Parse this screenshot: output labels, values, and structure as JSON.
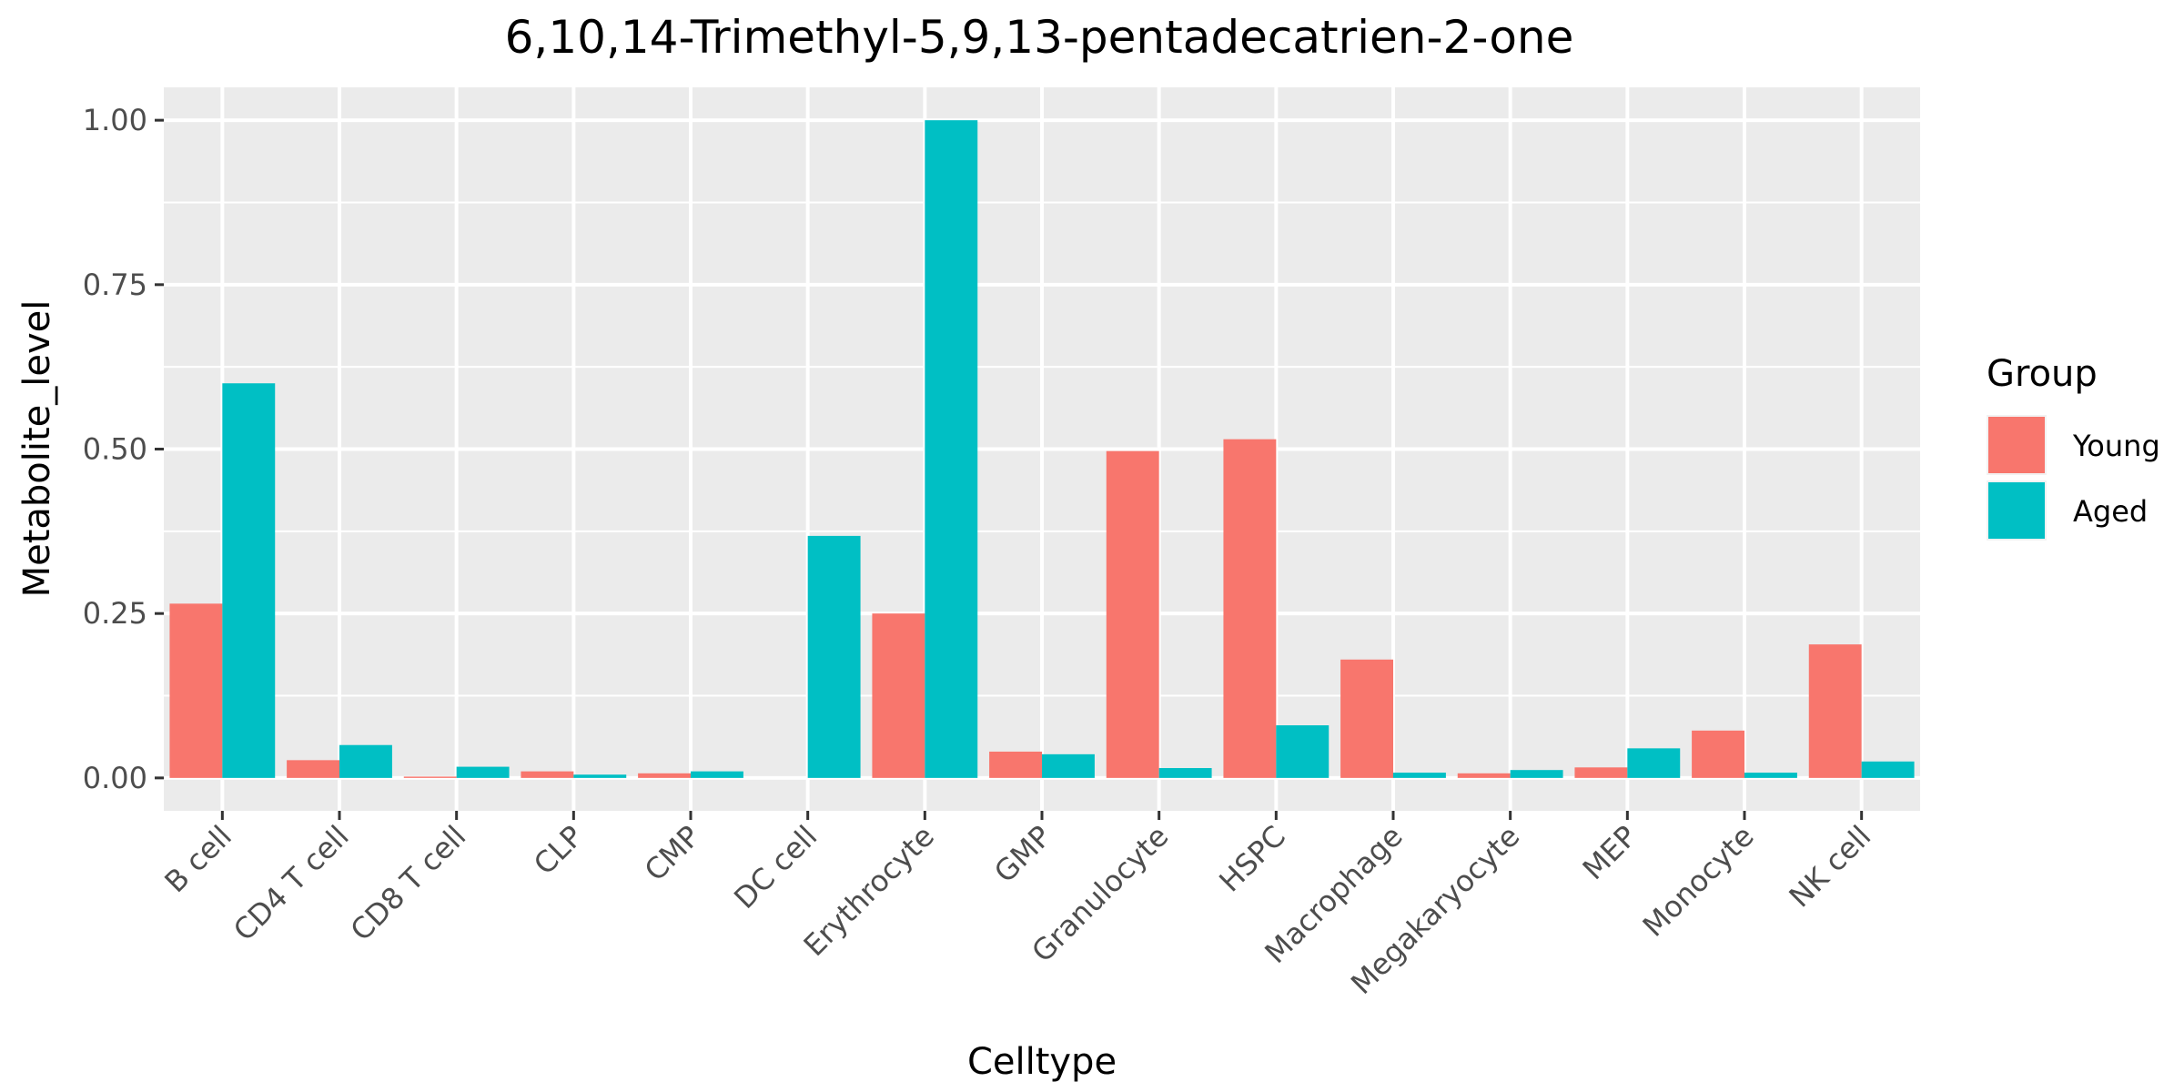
{
  "chart_data": {
    "type": "bar",
    "title": "6,10,14-Trimethyl-5,9,13-pentadecatrien-2-one",
    "xlabel": "Celltype",
    "ylabel": "Metabolite_level",
    "categories": [
      "B cell",
      "CD4 T cell",
      "CD8 T cell",
      "CLP",
      "CMP",
      "DC cell",
      "Erythrocyte",
      "GMP",
      "Granulocyte",
      "HSPC",
      "Macrophage",
      "Megakaryocyte",
      "MEP",
      "Monocyte",
      "NK cell"
    ],
    "series": [
      {
        "name": "Young",
        "color": "#F8766D",
        "values": [
          0.265,
          0.027,
          0.002,
          0.01,
          0.007,
          0.0,
          0.25,
          0.04,
          0.497,
          0.515,
          0.18,
          0.007,
          0.016,
          0.072,
          0.203
        ]
      },
      {
        "name": "Aged",
        "color": "#00BFC4",
        "values": [
          0.6,
          0.05,
          0.017,
          0.005,
          0.01,
          0.368,
          1.0,
          0.036,
          0.015,
          0.08,
          0.008,
          0.012,
          0.045,
          0.008,
          0.025
        ]
      }
    ],
    "ylim": [
      -0.05,
      1.05
    ],
    "yticks": [
      0.0,
      0.25,
      0.5,
      0.75,
      1.0
    ],
    "ytick_labels": [
      "0.00",
      "0.25",
      "0.50",
      "0.75",
      "1.00"
    ],
    "grid": true,
    "legend": {
      "title": "Group",
      "position": "right"
    },
    "panel_background": "#EBEBEB",
    "grid_color": "#FFFFFF"
  }
}
